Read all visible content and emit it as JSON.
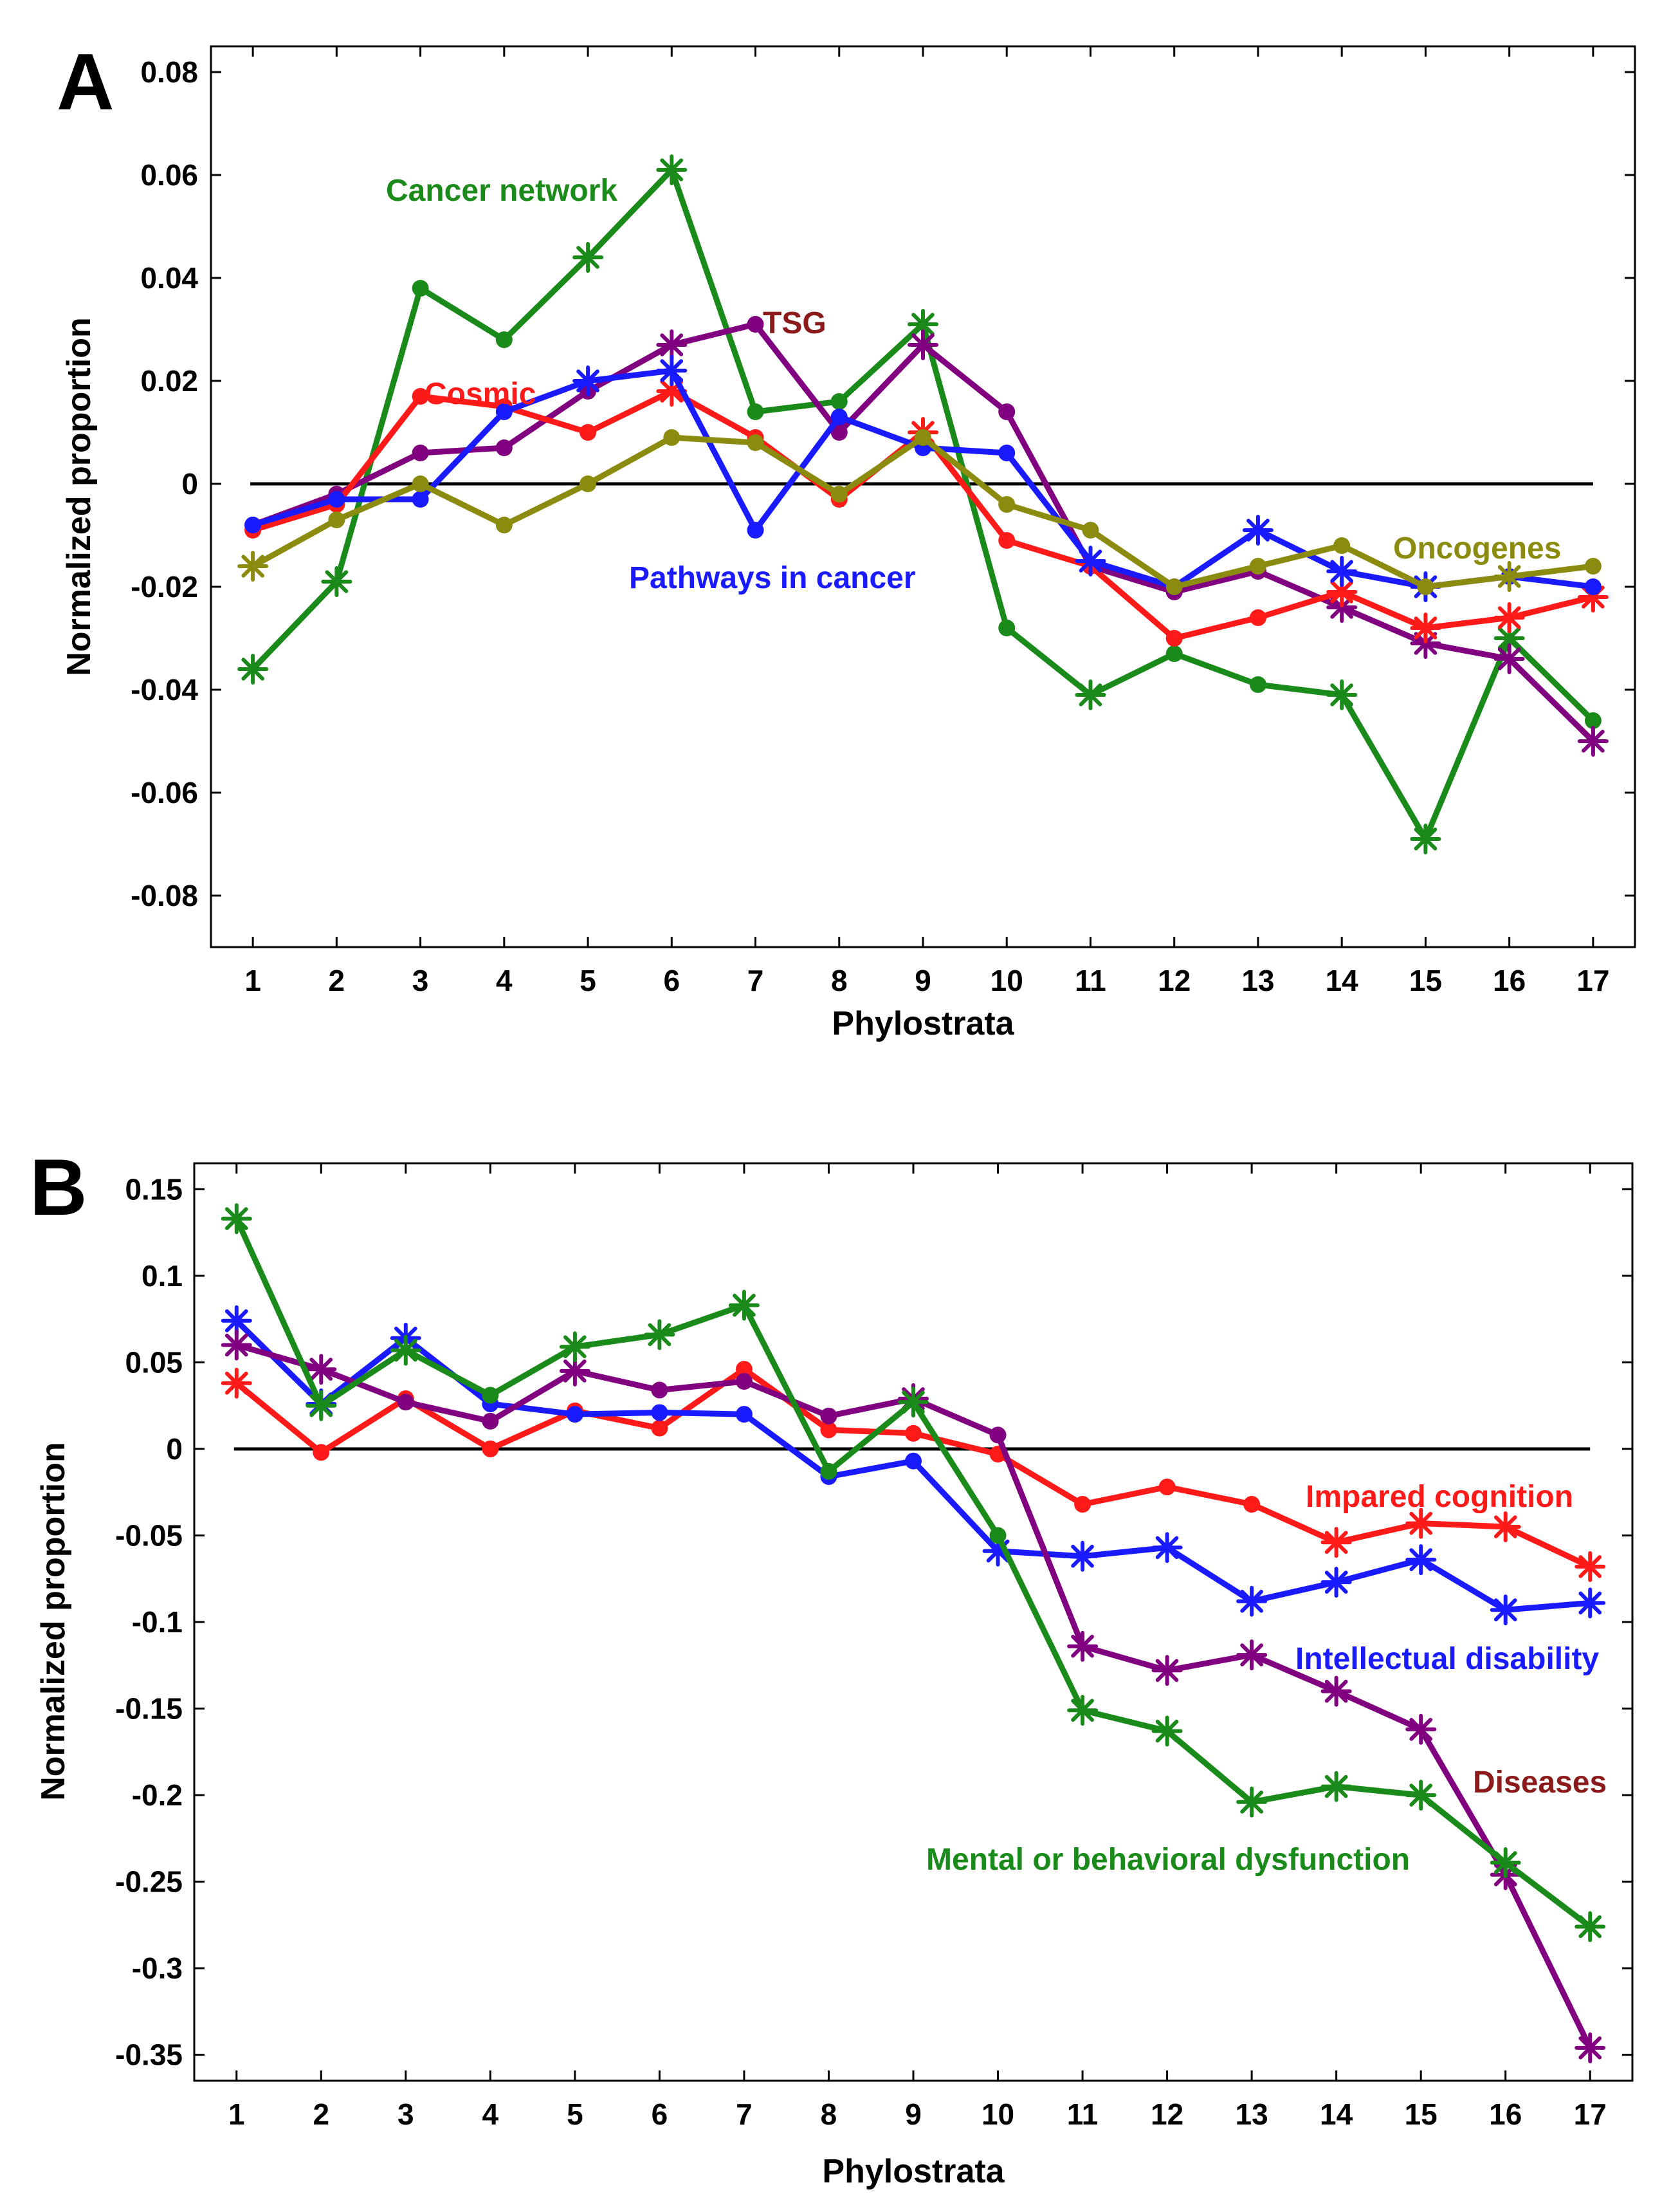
{
  "chart_data": [
    {
      "panel": "A",
      "type": "line",
      "xlabel": "Phylostrata",
      "ylabel": "Normalized proportion",
      "x": [
        1,
        2,
        3,
        4,
        5,
        6,
        7,
        8,
        9,
        10,
        11,
        12,
        13,
        14,
        15,
        16,
        17
      ],
      "xlim": [
        0.5,
        17.5
      ],
      "ylim": [
        -0.09,
        0.085
      ],
      "yticks": [
        0.08,
        0.06,
        0.04,
        0.02,
        0,
        -0.02,
        -0.04,
        -0.06,
        -0.08
      ],
      "ytick_labels": [
        "0.08",
        "0.06",
        "0.04",
        "0.02",
        "0",
        "-0.02",
        "-0.04",
        "-0.06",
        "-0.08"
      ],
      "xtick_labels": [
        "1",
        "2",
        "3",
        "4",
        "5",
        "6",
        "7",
        "8",
        "9",
        "10",
        "11",
        "12",
        "13",
        "14",
        "15",
        "16",
        "17"
      ],
      "reference_line": 0,
      "series": [
        {
          "name": "Cancer network",
          "label": "Cancer network",
          "color": "#1a8a1a",
          "label_color": "#1a8a1a",
          "values": [
            -0.036,
            -0.019,
            0.038,
            0.028,
            0.044,
            0.061,
            0.014,
            0.016,
            0.031,
            -0.028,
            -0.041,
            -0.033,
            -0.039,
            -0.041,
            -0.069,
            -0.03,
            -0.046
          ],
          "markers": [
            "star",
            "star",
            "dot",
            "dot",
            "star",
            "star",
            "dot",
            "dot",
            "star",
            "dot",
            "star",
            "dot",
            "dot",
            "star",
            "star",
            "star",
            "dot"
          ]
        },
        {
          "name": "TSG",
          "label": "TSG",
          "color": "#800080",
          "label_color": "#8b1a1a",
          "values": [
            -0.008,
            -0.002,
            0.006,
            0.007,
            0.018,
            0.027,
            0.031,
            0.01,
            0.027,
            0.014,
            -0.016,
            -0.021,
            -0.017,
            -0.024,
            -0.031,
            -0.034,
            -0.05
          ],
          "markers": [
            "dot",
            "dot",
            "dot",
            "dot",
            "dot",
            "star",
            "dot",
            "dot",
            "star",
            "dot",
            "dot",
            "dot",
            "dot",
            "star",
            "star",
            "star",
            "star"
          ]
        },
        {
          "name": "Cosmic",
          "label": "Cosmic",
          "color": "#ff1a1a",
          "label_color": "#ff1a1a",
          "values": [
            -0.009,
            -0.004,
            0.017,
            0.015,
            0.01,
            0.018,
            0.009,
            -0.003,
            0.01,
            -0.011,
            -0.016,
            -0.03,
            -0.026,
            -0.021,
            -0.028,
            -0.026,
            -0.022
          ],
          "markers": [
            "dot",
            "dot",
            "dot",
            "dot",
            "dot",
            "star",
            "dot",
            "dot",
            "star",
            "dot",
            "dot",
            "dot",
            "dot",
            "star",
            "star",
            "star",
            "star"
          ]
        },
        {
          "name": "Pathways in cancer",
          "label": "Pathways in cancer",
          "color": "#1a1aff",
          "label_color": "#1a1aff",
          "values": [
            -0.008,
            -0.003,
            -0.003,
            0.014,
            0.02,
            0.022,
            -0.009,
            0.013,
            0.007,
            0.006,
            -0.015,
            -0.02,
            -0.009,
            -0.017,
            -0.02,
            -0.018,
            -0.02
          ],
          "markers": [
            "dot",
            "dot",
            "dot",
            "dot",
            "star",
            "star",
            "dot",
            "dot",
            "dot",
            "dot",
            "star",
            "dot",
            "star",
            "star",
            "star",
            "dot",
            "dot"
          ]
        },
        {
          "name": "Oncogenes",
          "label": "Oncogenes",
          "color": "#8b8b10",
          "label_color": "#8b8b10",
          "values": [
            -0.016,
            -0.007,
            0.0,
            -0.008,
            0.0,
            0.009,
            0.008,
            -0.002,
            0.009,
            -0.004,
            -0.009,
            -0.02,
            -0.016,
            -0.012,
            -0.02,
            -0.018,
            -0.016
          ],
          "markers": [
            "star",
            "dot",
            "dot",
            "dot",
            "dot",
            "dot",
            "dot",
            "dot",
            "dot",
            "dot",
            "dot",
            "dot",
            "dot",
            "dot",
            "dot",
            "star",
            "dot"
          ]
        }
      ]
    },
    {
      "panel": "B",
      "type": "line",
      "xlabel": "Phylostrata",
      "ylabel": "Normalized proportion",
      "x": [
        1,
        2,
        3,
        4,
        5,
        6,
        7,
        8,
        9,
        10,
        11,
        12,
        13,
        14,
        15,
        16,
        17
      ],
      "xlim": [
        0.5,
        17.5
      ],
      "ylim": [
        -0.365,
        0.165
      ],
      "yticks": [
        0.15,
        0.1,
        0.05,
        0,
        -0.05,
        -0.1,
        -0.15,
        -0.2,
        -0.25,
        -0.3,
        -0.35
      ],
      "ytick_labels": [
        "0.15",
        "0.1",
        "0.05",
        "0",
        "-0.05",
        "-0.1",
        "-0.15",
        "-0.2",
        "-0.25",
        "-0.3",
        "-0.35"
      ],
      "xtick_labels": [
        "1",
        "2",
        "3",
        "4",
        "5",
        "6",
        "7",
        "8",
        "9",
        "10",
        "11",
        "12",
        "13",
        "14",
        "15",
        "16",
        "17"
      ],
      "reference_line": 0,
      "series": [
        {
          "name": "Impared cognition",
          "label": "Impared cognition",
          "color": "#ff1a1a",
          "label_color": "#ff1a1a",
          "values": [
            0.038,
            -0.002,
            0.029,
            0.0,
            0.022,
            0.012,
            0.046,
            0.011,
            0.009,
            -0.003,
            -0.032,
            -0.022,
            -0.032,
            -0.054,
            -0.043,
            -0.045,
            -0.068
          ],
          "markers": [
            "star",
            "dot",
            "dot",
            "dot",
            "dot",
            "dot",
            "dot",
            "dot",
            "dot",
            "dot",
            "dot",
            "dot",
            "dot",
            "star",
            "star",
            "star",
            "star"
          ]
        },
        {
          "name": "Intellectual disability",
          "label": "Intellectual disability",
          "color": "#1a1aff",
          "label_color": "#1a1aff",
          "values": [
            0.074,
            0.026,
            0.064,
            0.026,
            0.02,
            0.021,
            0.02,
            -0.016,
            -0.007,
            -0.059,
            -0.062,
            -0.057,
            -0.088,
            -0.077,
            -0.064,
            -0.093,
            -0.089
          ],
          "markers": [
            "star",
            "star",
            "star",
            "dot",
            "dot",
            "dot",
            "dot",
            "dot",
            "dot",
            "star",
            "star",
            "star",
            "star",
            "star",
            "star",
            "star",
            "star"
          ]
        },
        {
          "name": "Diseases",
          "label": "Diseases",
          "color": "#800080",
          "label_color": "#8b1a1a",
          "values": [
            0.06,
            0.046,
            0.027,
            0.016,
            0.045,
            0.034,
            0.039,
            0.019,
            0.029,
            0.008,
            -0.114,
            -0.128,
            -0.119,
            -0.14,
            -0.162,
            -0.246,
            -0.346
          ],
          "markers": [
            "star",
            "star",
            "dot",
            "dot",
            "star",
            "dot",
            "dot",
            "dot",
            "star",
            "dot",
            "star",
            "star",
            "star",
            "star",
            "star",
            "star",
            "star"
          ]
        },
        {
          "name": "Mental or behavioral dysfunction",
          "label": "Mental or behavioral dysfunction",
          "color": "#1a8a1a",
          "label_color": "#1a8a1a",
          "values": [
            0.133,
            0.025,
            0.057,
            0.031,
            0.059,
            0.066,
            0.083,
            -0.013,
            0.027,
            -0.05,
            -0.151,
            -0.163,
            -0.204,
            -0.195,
            -0.2,
            -0.239,
            -0.276
          ],
          "markers": [
            "star",
            "star",
            "star",
            "dot",
            "star",
            "star",
            "star",
            "dot",
            "star",
            "dot",
            "star",
            "star",
            "star",
            "star",
            "star",
            "star",
            "star"
          ]
        }
      ]
    }
  ]
}
